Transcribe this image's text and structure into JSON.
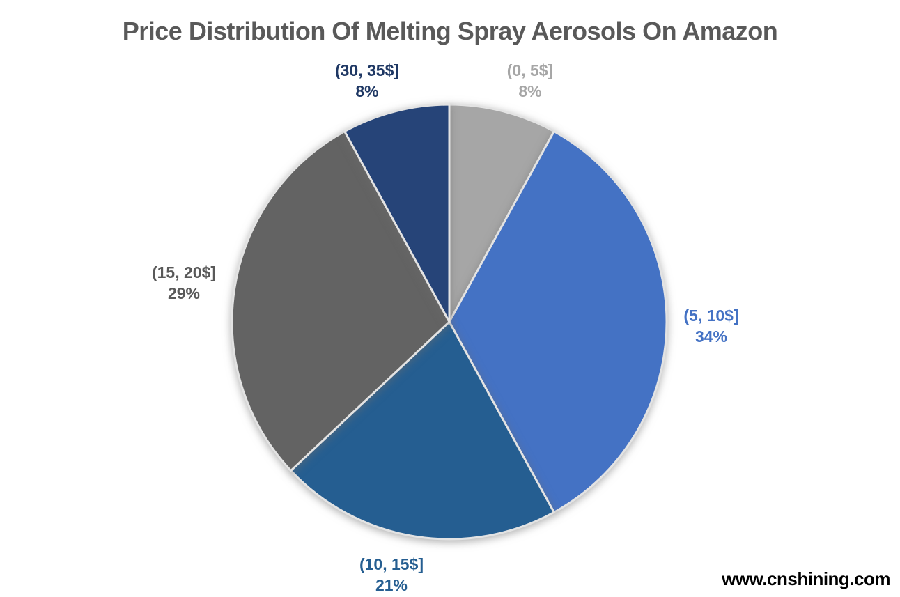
{
  "title": {
    "text": "Price Distribution Of Melting Spray Aerosols On Amazon",
    "color": "#595959"
  },
  "watermark": {
    "text": "www.cnshining.com",
    "color": "#000000"
  },
  "chart_data": {
    "type": "pie",
    "title": "Price Distribution Of Melting Spray Aerosols On Amazon",
    "start_angle_deg": 0,
    "direction": "clockwise",
    "labels_position": "outside",
    "separator_color": "#E3E3E3",
    "background": "#FFFFFF",
    "categories": [
      "(0, 5$]",
      "(5, 10$]",
      "(10, 15$]",
      "(15, 20$]",
      "(30, 35$]"
    ],
    "values": [
      8,
      34,
      21,
      29,
      8
    ],
    "slices": [
      {
        "label": "(0, 5$]",
        "value_pct": 8,
        "pct_text": "8%",
        "color": "#A6A6A6",
        "label_color": "#A6A6A6"
      },
      {
        "label": "(5, 10$]",
        "value_pct": 34,
        "pct_text": "34%",
        "color": "#4472C4",
        "label_color": "#4472C4"
      },
      {
        "label": "(10, 15$]",
        "value_pct": 21,
        "pct_text": "21%",
        "color": "#255E91",
        "label_color": "#255E91"
      },
      {
        "label": "(15, 20$]",
        "value_pct": 29,
        "pct_text": "29%",
        "color": "#636363",
        "label_color": "#595959"
      },
      {
        "label": "(30, 35$]",
        "value_pct": 8,
        "pct_text": "8%",
        "color": "#264478",
        "label_color": "#1F3864"
      }
    ]
  }
}
